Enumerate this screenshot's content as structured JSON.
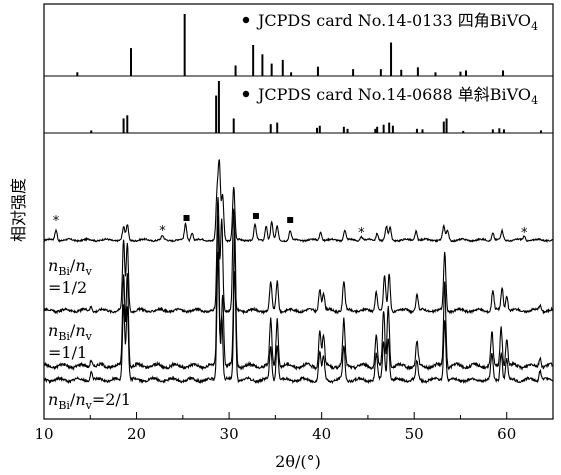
{
  "chart_data": {
    "type": "line",
    "xlabel": "2θ/(°)",
    "ylabel": "相对强度",
    "xlim": [
      10,
      65
    ],
    "xticks": [
      10,
      20,
      30,
      40,
      50,
      60
    ],
    "reference_panels": [
      {
        "label": "JCPDS card No.14-0133 四角BiVO",
        "subscript": "4",
        "peaks": [
          {
            "x": 13.6,
            "h": 0.06
          },
          {
            "x": 19.4,
            "h": 0.45
          },
          {
            "x": 25.2,
            "h": 1.0
          },
          {
            "x": 30.7,
            "h": 0.17
          },
          {
            "x": 32.6,
            "h": 0.5
          },
          {
            "x": 33.6,
            "h": 0.35
          },
          {
            "x": 34.6,
            "h": 0.2
          },
          {
            "x": 35.8,
            "h": 0.26
          },
          {
            "x": 36.7,
            "h": 0.06
          },
          {
            "x": 39.6,
            "h": 0.15
          },
          {
            "x": 43.4,
            "h": 0.11
          },
          {
            "x": 46.4,
            "h": 0.11
          },
          {
            "x": 47.5,
            "h": 0.54
          },
          {
            "x": 48.6,
            "h": 0.1
          },
          {
            "x": 50.4,
            "h": 0.14
          },
          {
            "x": 52.3,
            "h": 0.06
          },
          {
            "x": 55.0,
            "h": 0.07
          },
          {
            "x": 55.6,
            "h": 0.09
          },
          {
            "x": 59.6,
            "h": 0.09
          }
        ]
      },
      {
        "label": "JCPDS card No.14-0688 单斜BiVO",
        "subscript": "4",
        "peaks": [
          {
            "x": 15.1,
            "h": 0.05
          },
          {
            "x": 18.6,
            "h": 0.28
          },
          {
            "x": 19.0,
            "h": 0.34
          },
          {
            "x": 28.6,
            "h": 0.72
          },
          {
            "x": 28.9,
            "h": 1.0
          },
          {
            "x": 30.5,
            "h": 0.28
          },
          {
            "x": 34.5,
            "h": 0.17
          },
          {
            "x": 35.2,
            "h": 0.2
          },
          {
            "x": 39.5,
            "h": 0.1
          },
          {
            "x": 39.8,
            "h": 0.14
          },
          {
            "x": 42.4,
            "h": 0.12
          },
          {
            "x": 42.8,
            "h": 0.08
          },
          {
            "x": 45.8,
            "h": 0.08
          },
          {
            "x": 46.0,
            "h": 0.12
          },
          {
            "x": 46.7,
            "h": 0.16
          },
          {
            "x": 47.3,
            "h": 0.2
          },
          {
            "x": 47.7,
            "h": 0.14
          },
          {
            "x": 50.3,
            "h": 0.08
          },
          {
            "x": 50.9,
            "h": 0.07
          },
          {
            "x": 53.2,
            "h": 0.22
          },
          {
            "x": 53.5,
            "h": 0.28
          },
          {
            "x": 55.3,
            "h": 0.04
          },
          {
            "x": 58.5,
            "h": 0.07
          },
          {
            "x": 59.2,
            "h": 0.09
          },
          {
            "x": 59.7,
            "h": 0.07
          },
          {
            "x": 63.7,
            "h": 0.05
          }
        ]
      }
    ],
    "patterns": [
      {
        "label_parts": [
          "",
          "",
          "",
          "",
          "",
          ""
        ],
        "baseline": 0.04,
        "scale": 0.78,
        "peaks": [
          {
            "x": 11.3,
            "h": 0.14
          },
          {
            "x": 18.6,
            "h": 0.17
          },
          {
            "x": 19.0,
            "h": 0.2
          },
          {
            "x": 22.8,
            "h": 0.05
          },
          {
            "x": 25.3,
            "h": 0.22
          },
          {
            "x": 26.0,
            "h": 0.1
          },
          {
            "x": 28.7,
            "h": 0.6
          },
          {
            "x": 28.95,
            "h": 1.0
          },
          {
            "x": 29.3,
            "h": 0.6
          },
          {
            "x": 30.5,
            "h": 0.72
          },
          {
            "x": 32.8,
            "h": 0.2
          },
          {
            "x": 34.0,
            "h": 0.2
          },
          {
            "x": 34.6,
            "h": 0.24
          },
          {
            "x": 35.2,
            "h": 0.18
          },
          {
            "x": 36.6,
            "h": 0.12
          },
          {
            "x": 39.9,
            "h": 0.12
          },
          {
            "x": 42.5,
            "h": 0.14
          },
          {
            "x": 44.3,
            "h": 0.05
          },
          {
            "x": 46.0,
            "h": 0.1
          },
          {
            "x": 47.0,
            "h": 0.18
          },
          {
            "x": 47.4,
            "h": 0.16
          },
          {
            "x": 50.2,
            "h": 0.13
          },
          {
            "x": 53.2,
            "h": 0.18
          },
          {
            "x": 53.6,
            "h": 0.13
          },
          {
            "x": 58.5,
            "h": 0.1
          },
          {
            "x": 59.5,
            "h": 0.12
          },
          {
            "x": 61.9,
            "h": 0.05
          }
        ]
      },
      {
        "label_parts": [
          "n",
          "Bi",
          "/n",
          "v",
          "",
          "=1/2"
        ],
        "baseline": 0.04,
        "scale": 0.75,
        "peaks": [
          {
            "x": 15.1,
            "h": 0.04
          },
          {
            "x": 18.6,
            "h": 0.62
          },
          {
            "x": 19.0,
            "h": 0.6
          },
          {
            "x": 28.8,
            "h": 1.0
          },
          {
            "x": 29.2,
            "h": 0.82
          },
          {
            "x": 30.5,
            "h": 0.9
          },
          {
            "x": 34.5,
            "h": 0.24
          },
          {
            "x": 35.2,
            "h": 0.26
          },
          {
            "x": 39.8,
            "h": 0.2
          },
          {
            "x": 40.2,
            "h": 0.16
          },
          {
            "x": 42.4,
            "h": 0.26
          },
          {
            "x": 45.9,
            "h": 0.18
          },
          {
            "x": 46.8,
            "h": 0.3
          },
          {
            "x": 47.3,
            "h": 0.32
          },
          {
            "x": 50.3,
            "h": 0.14
          },
          {
            "x": 53.3,
            "h": 0.52
          },
          {
            "x": 58.5,
            "h": 0.18
          },
          {
            "x": 59.5,
            "h": 0.2
          },
          {
            "x": 60.0,
            "h": 0.14
          },
          {
            "x": 63.6,
            "h": 0.05
          }
        ]
      },
      {
        "label_parts": [
          "n",
          "Bi",
          "/n",
          "v",
          "",
          "=1/1"
        ],
        "baseline": 0.04,
        "scale": 0.72,
        "peaks": [
          {
            "x": 15.1,
            "h": 0.05
          },
          {
            "x": 18.6,
            "h": 0.6
          },
          {
            "x": 19.0,
            "h": 0.62
          },
          {
            "x": 28.8,
            "h": 1.0
          },
          {
            "x": 29.3,
            "h": 0.48
          },
          {
            "x": 30.6,
            "h": 0.9
          },
          {
            "x": 34.5,
            "h": 0.3
          },
          {
            "x": 35.2,
            "h": 0.32
          },
          {
            "x": 39.8,
            "h": 0.24
          },
          {
            "x": 40.2,
            "h": 0.2
          },
          {
            "x": 42.4,
            "h": 0.3
          },
          {
            "x": 45.9,
            "h": 0.2
          },
          {
            "x": 46.7,
            "h": 0.36
          },
          {
            "x": 47.2,
            "h": 0.4
          },
          {
            "x": 50.3,
            "h": 0.16
          },
          {
            "x": 53.3,
            "h": 0.56
          },
          {
            "x": 58.4,
            "h": 0.22
          },
          {
            "x": 59.4,
            "h": 0.26
          },
          {
            "x": 60.0,
            "h": 0.18
          },
          {
            "x": 63.6,
            "h": 0.06
          }
        ]
      },
      {
        "label_parts": [
          "",
          "",
          "",
          "",
          "",
          ""
        ],
        "baseline": 0.04,
        "scale": 0.95,
        "peaks": [
          {
            "x": 15.1,
            "h": 0.06
          },
          {
            "x": 18.6,
            "h": 0.6
          },
          {
            "x": 19.0,
            "h": 0.58
          },
          {
            "x": 28.8,
            "h": 1.0
          },
          {
            "x": 29.2,
            "h": 0.5
          },
          {
            "x": 30.6,
            "h": 0.86
          },
          {
            "x": 34.5,
            "h": 0.26
          },
          {
            "x": 35.2,
            "h": 0.28
          },
          {
            "x": 39.8,
            "h": 0.22
          },
          {
            "x": 40.2,
            "h": 0.18
          },
          {
            "x": 42.4,
            "h": 0.26
          },
          {
            "x": 45.9,
            "h": 0.2
          },
          {
            "x": 46.7,
            "h": 0.3
          },
          {
            "x": 47.2,
            "h": 0.34
          },
          {
            "x": 50.3,
            "h": 0.14
          },
          {
            "x": 53.3,
            "h": 0.48
          },
          {
            "x": 58.4,
            "h": 0.2
          },
          {
            "x": 59.4,
            "h": 0.22
          },
          {
            "x": 60.0,
            "h": 0.16
          },
          {
            "x": 63.6,
            "h": 0.08
          }
        ]
      }
    ],
    "bottom_label_parts": [
      "n",
      "Bi",
      "/n",
      "v",
      "",
      "=2/1"
    ],
    "markers": [
      {
        "type": "star",
        "x": 11.3
      },
      {
        "type": "star",
        "x": 22.8
      },
      {
        "type": "square",
        "x": 25.4
      },
      {
        "type": "square",
        "x": 32.9
      },
      {
        "type": "square",
        "x": 36.6
      },
      {
        "type": "star",
        "x": 44.3
      },
      {
        "type": "star",
        "x": 61.9
      }
    ]
  }
}
